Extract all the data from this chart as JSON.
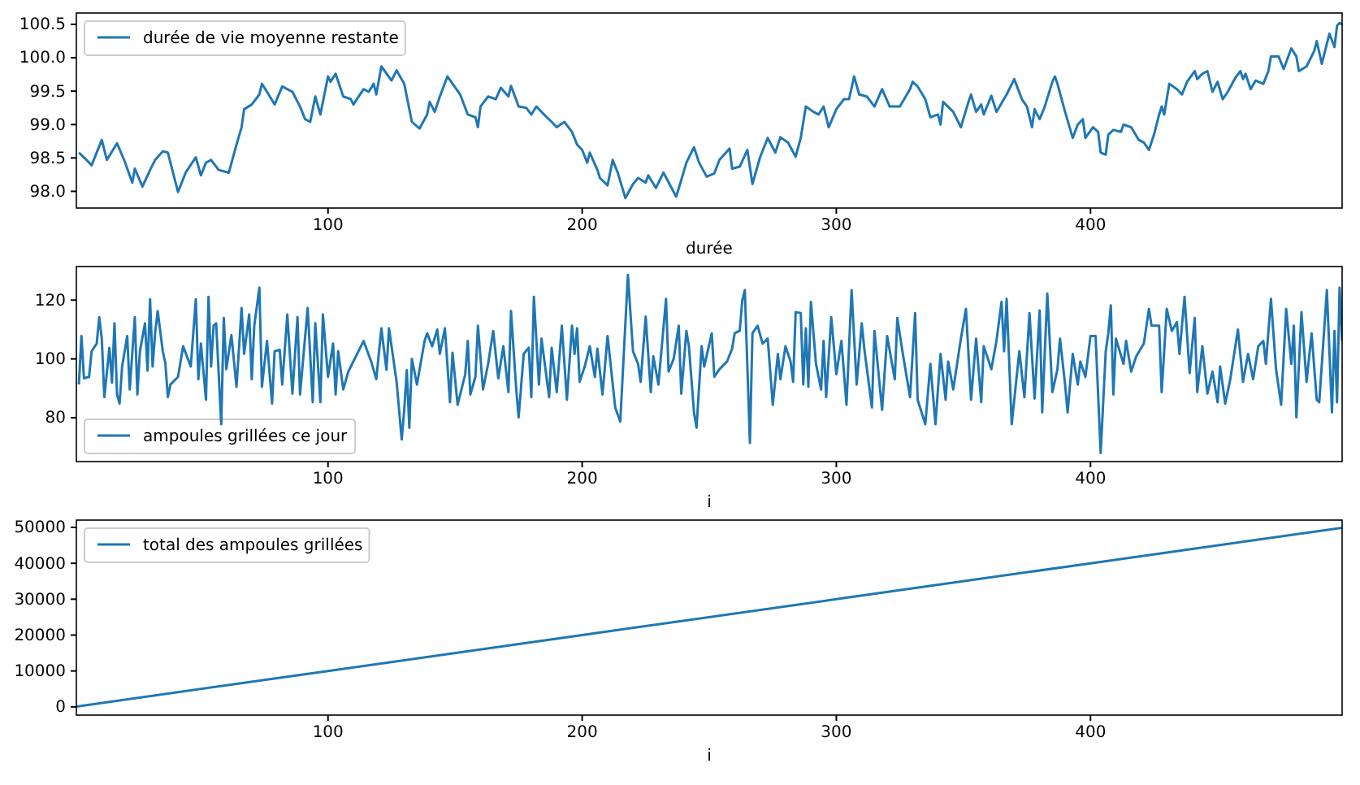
{
  "chart_data": [
    {
      "type": "line",
      "xlabel": "durée",
      "legend": "top left",
      "xlim": [
        1,
        499
      ],
      "xticks": [
        100,
        200,
        300,
        400
      ],
      "ylim": [
        97.75,
        100.67
      ],
      "yticks": [
        {
          "value": 98,
          "label": "98.0"
        },
        {
          "value": 98.5,
          "label": "98.5"
        },
        {
          "value": 99,
          "label": "99.0"
        },
        {
          "value": 99.5,
          "label": "99.5"
        },
        {
          "value": 100,
          "label": "100.0"
        },
        {
          "value": 100.5,
          "label": "100.5"
        }
      ],
      "x": [
        2,
        5,
        7,
        11,
        13,
        17,
        20,
        23,
        24,
        27,
        30,
        32,
        35,
        37,
        41,
        44,
        48,
        50,
        52,
        54,
        57,
        61,
        64,
        66,
        67,
        70,
        73,
        74,
        76,
        79,
        82,
        86,
        89,
        91,
        93,
        95,
        97,
        100,
        101,
        103,
        106,
        109,
        110,
        114,
        116,
        118,
        119,
        121,
        125,
        127,
        130,
        133,
        136,
        139,
        140,
        142,
        144,
        147,
        152,
        155,
        158,
        159,
        160,
        163,
        166,
        168,
        171,
        172,
        175,
        178,
        180,
        182,
        185,
        188,
        190,
        193,
        196,
        198,
        200,
        202,
        203,
        206,
        207,
        210,
        212,
        214,
        217,
        220,
        222,
        225,
        226,
        229,
        232,
        237,
        239,
        241,
        244,
        246,
        249,
        252,
        254,
        258,
        259,
        262,
        265,
        267,
        270,
        273,
        276,
        278,
        281,
        284,
        286,
        288,
        291,
        293,
        295,
        297,
        300,
        303,
        305,
        307,
        309,
        312,
        315,
        318,
        321,
        325,
        329,
        330,
        332,
        335,
        337,
        340,
        341,
        342,
        346,
        349,
        352,
        353,
        355,
        357,
        358,
        361,
        363,
        367,
        370,
        373,
        375,
        377,
        378,
        380,
        382,
        385,
        386,
        387,
        390,
        393,
        395,
        397,
        398,
        401,
        403,
        404,
        406,
        407,
        409,
        412,
        413,
        416,
        419,
        421,
        423,
        425,
        427,
        428,
        429,
        431,
        434,
        436,
        438,
        441,
        442,
        444,
        446,
        448,
        450,
        452,
        454,
        457,
        459,
        460,
        461,
        463,
        465,
        468,
        470,
        471,
        474,
        476,
        479,
        481,
        482,
        485,
        488,
        489,
        491,
        493,
        494,
        496,
        497,
        498,
        499
      ],
      "series": [
        {
          "name": "durée de vie moyenne restante",
          "color": "#1f77b4",
          "values": [
            98.58,
            98.47,
            98.39,
            98.77,
            98.47,
            98.72,
            98.45,
            98.13,
            98.34,
            98.07,
            98.32,
            98.47,
            98.6,
            98.58,
            97.99,
            98.28,
            98.51,
            98.24,
            98.43,
            98.47,
            98.32,
            98.28,
            98.7,
            98.96,
            99.23,
            99.3,
            99.45,
            99.61,
            99.49,
            99.3,
            99.57,
            99.49,
            99.27,
            99.08,
            99.04,
            99.42,
            99.15,
            99.72,
            99.64,
            99.76,
            99.42,
            99.38,
            99.3,
            99.53,
            99.49,
            99.61,
            99.45,
            99.87,
            99.66,
            99.81,
            99.61,
            99.04,
            98.94,
            99.15,
            99.34,
            99.19,
            99.42,
            99.72,
            99.45,
            99.15,
            99.11,
            98.96,
            99.27,
            99.42,
            99.38,
            99.55,
            99.42,
            99.58,
            99.27,
            99.25,
            99.15,
            99.27,
            99.15,
            99.04,
            98.96,
            99.04,
            98.89,
            98.7,
            98.62,
            98.43,
            98.58,
            98.32,
            98.2,
            98.09,
            98.47,
            98.28,
            97.9,
            98.11,
            98.2,
            98.13,
            98.24,
            98.05,
            98.28,
            97.92,
            98.17,
            98.43,
            98.66,
            98.43,
            98.22,
            98.27,
            98.47,
            98.64,
            98.34,
            98.37,
            98.62,
            98.11,
            98.51,
            98.8,
            98.58,
            98.81,
            98.73,
            98.52,
            98.8,
            99.27,
            99.19,
            99.15,
            99.27,
            98.96,
            99.23,
            99.38,
            99.38,
            99.72,
            99.45,
            99.42,
            99.27,
            99.53,
            99.27,
            99.27,
            99.53,
            99.64,
            99.57,
            99.38,
            99.11,
            99.15,
            99.0,
            99.34,
            99.19,
            98.96,
            99.34,
            99.45,
            99.19,
            99.3,
            99.15,
            99.43,
            99.19,
            99.45,
            99.68,
            99.38,
            99.27,
            98.96,
            99.23,
            99.08,
            99.27,
            99.64,
            99.72,
            99.61,
            99.19,
            98.8,
            99.0,
            99.08,
            98.8,
            98.96,
            98.89,
            98.58,
            98.55,
            98.85,
            98.92,
            98.89,
            99.0,
            98.96,
            98.77,
            98.73,
            98.62,
            98.85,
            99.15,
            99.27,
            99.15,
            99.61,
            99.53,
            99.45,
            99.64,
            99.8,
            99.68,
            99.76,
            99.8,
            99.49,
            99.64,
            99.38,
            99.49,
            99.7,
            99.8,
            99.68,
            99.76,
            99.53,
            99.66,
            99.61,
            99.8,
            100.02,
            100.02,
            99.83,
            100.14,
            100.02,
            99.8,
            99.87,
            100.1,
            100.25,
            99.91,
            100.21,
            100.36,
            100.16,
            100.48,
            100.52,
            100.5
          ]
        }
      ]
    },
    {
      "type": "line",
      "xlabel": "i",
      "legend": "bottom left",
      "xlim": [
        1,
        499
      ],
      "xticks": [
        100,
        200,
        300,
        400
      ],
      "ylim": [
        65.1,
        131.4
      ],
      "yticks": [
        80,
        100,
        120
      ],
      "x": [
        2,
        3,
        4,
        6,
        7,
        9,
        10,
        11,
        12,
        14,
        15,
        16,
        17,
        18,
        19,
        21,
        22,
        24,
        25,
        26,
        28,
        29,
        30,
        31,
        32,
        33,
        35,
        36,
        37,
        38,
        41,
        43,
        46,
        48,
        49,
        50,
        52,
        53,
        54,
        55,
        56,
        58,
        59,
        60,
        62,
        64,
        66,
        67,
        69,
        70,
        71,
        73,
        74,
        76,
        78,
        79,
        81,
        82,
        84,
        86,
        88,
        89,
        92,
        94,
        95,
        97,
        98,
        100,
        102,
        103,
        104,
        106,
        108,
        111,
        114,
        117,
        119,
        121,
        123,
        124,
        127,
        129,
        130,
        131,
        132,
        133,
        135,
        138,
        139,
        141,
        143,
        144,
        146,
        148,
        149,
        151,
        154,
        155,
        156,
        158,
        159,
        161,
        163,
        165,
        167,
        169,
        171,
        172,
        174,
        175,
        177,
        179,
        180,
        181,
        183,
        184,
        187,
        188,
        190,
        192,
        194,
        196,
        197,
        198,
        199,
        201,
        203,
        205,
        206,
        208,
        210,
        213,
        215,
        218,
        220,
        222,
        223,
        225,
        227,
        228,
        230,
        233,
        234,
        236,
        238,
        239,
        241,
        242,
        244,
        245,
        247,
        248,
        251,
        252,
        254,
        257,
        259,
        260,
        262,
        263,
        264,
        266,
        267,
        269,
        271,
        273,
        275,
        277,
        278,
        280,
        282,
        283,
        284,
        286,
        287,
        288,
        289,
        290,
        292,
        294,
        295,
        296,
        298,
        300,
        302,
        304,
        306,
        308,
        310,
        311,
        314,
        315,
        318,
        320,
        323,
        324,
        326,
        329,
        331,
        332,
        335,
        337,
        339,
        341,
        343,
        344,
        346,
        349,
        351,
        353,
        355,
        357,
        358,
        361,
        363,
        365,
        366,
        367,
        369,
        372,
        374,
        376,
        377,
        378,
        380,
        381,
        383,
        385,
        387,
        388,
        390,
        391,
        393,
        395,
        396,
        398,
        400,
        402,
        404,
        406,
        407,
        408,
        409,
        410,
        413,
        414,
        416,
        418,
        421,
        423,
        424,
        427,
        428,
        430,
        432,
        434,
        435,
        437,
        439,
        441,
        442,
        444,
        446,
        448,
        450,
        451,
        453,
        455,
        458,
        460,
        462,
        464,
        466,
        468,
        469,
        471,
        473,
        475,
        477,
        479,
        480,
        481,
        483,
        485,
        487,
        489,
        490,
        493,
        495,
        496,
        497,
        498,
        499
      ],
      "series": [
        {
          "name": "ampoules grillées ce jour",
          "color": "#1f77b4",
          "values": [
            91.3,
            107.8,
            93.4,
            93.9,
            102.6,
            105.2,
            114.2,
            106.9,
            87.0,
            103.8,
            91.9,
            112.1,
            87.9,
            84.8,
            97.4,
            107.8,
            89.6,
            114.2,
            87.9,
            102.6,
            112.1,
            96.0,
            120.3,
            97.4,
            109.0,
            116.3,
            102.6,
            98.6,
            87.0,
            91.3,
            93.9,
            104.3,
            97.4,
            120.3,
            93.1,
            105.2,
            86.1,
            121.1,
            97.4,
            111.3,
            112.1,
            77.8,
            113.9,
            96.5,
            108.1,
            90.5,
            117.3,
            101.7,
            115.1,
            93.1,
            111.3,
            124.2,
            90.5,
            106.1,
            84.8,
            102.6,
            103.1,
            91.3,
            115.1,
            88.2,
            114.2,
            87.9,
            117.3,
            85.3,
            112.1,
            85.3,
            115.1,
            93.9,
            105.2,
            87.9,
            102.6,
            89.6,
            95.7,
            100.9,
            106.1,
            99.1,
            93.1,
            110.4,
            96.3,
            110.4,
            92.2,
            72.6,
            82.7,
            96.2,
            76.6,
            100.0,
            91.3,
            106.1,
            108.7,
            104.3,
            110.0,
            101.7,
            110.4,
            85.3,
            102.1,
            84.4,
            94.8,
            106.1,
            87.9,
            93.9,
            111.3,
            89.6,
            98.3,
            109.5,
            93.4,
            104.3,
            88.7,
            116.3,
            90.5,
            80.1,
            101.7,
            103.8,
            87.0,
            121.1,
            91.3,
            106.9,
            87.0,
            103.8,
            88.7,
            111.3,
            86.1,
            111.3,
            101.7,
            110.4,
            92.2,
            97.4,
            104.3,
            93.9,
            103.5,
            87.9,
            107.8,
            83.5,
            78.7,
            128.6,
            102.6,
            98.3,
            92.2,
            114.4,
            88.7,
            100.9,
            91.3,
            120.4,
            95.7,
            100.0,
            111.3,
            88.2,
            109.5,
            104.3,
            81.8,
            76.6,
            104.3,
            97.4,
            108.7,
            93.9,
            96.5,
            99.1,
            103.5,
            108.7,
            109.6,
            119.9,
            123.4,
            71.4,
            108.7,
            111.3,
            105.2,
            106.9,
            84.4,
            101.7,
            93.1,
            104.3,
            99.1,
            92.2,
            115.9,
            115.6,
            91.3,
            110.4,
            90.5,
            119.4,
            98.3,
            89.6,
            106.1,
            87.0,
            114.2,
            94.8,
            106.1,
            84.4,
            123.4,
            91.3,
            112.1,
            103.5,
            83.5,
            109.5,
            82.7,
            107.8,
            93.1,
            113.9,
            102.6,
            87.0,
            115.6,
            86.1,
            77.8,
            98.3,
            77.8,
            101.7,
            86.1,
            99.1,
            89.6,
            106.9,
            117.0,
            86.1,
            106.9,
            85.3,
            104.3,
            96.5,
            106.1,
            119.4,
            102.6,
            120.4,
            77.8,
            102.6,
            87.0,
            115.6,
            100.9,
            86.5,
            116.5,
            81.8,
            122.2,
            88.7,
            96.5,
            106.9,
            91.3,
            81.8,
            101.7,
            91.3,
            99.1,
            93.9,
            107.8,
            107.8,
            68.0,
            102.6,
            108.7,
            118.2,
            87.9,
            106.9,
            98.3,
            106.1,
            95.7,
            100.9,
            105.2,
            117.0,
            111.3,
            111.3,
            88.7,
            117.0,
            109.5,
            112.5,
            101.7,
            121.1,
            95.2,
            113.9,
            88.7,
            104.3,
            88.2,
            95.7,
            85.3,
            97.4,
            84.8,
            93.1,
            110.0,
            92.2,
            101.7,
            93.1,
            104.3,
            106.1,
            98.3,
            120.4,
            96.5,
            84.4,
            117.0,
            98.3,
            111.3,
            80.1,
            115.9,
            92.2,
            108.7,
            86.1,
            85.3,
            123.4,
            81.8,
            109.5,
            85.3,
            124.2,
            106.1
          ]
        }
      ]
    },
    {
      "type": "line",
      "xlabel": "i",
      "legend": "top left",
      "xlim": [
        1,
        499
      ],
      "xticks": [
        100,
        200,
        300,
        400
      ],
      "ylim": [
        -2300,
        52040
      ],
      "yticks": [
        0,
        10000,
        20000,
        30000,
        40000,
        50000
      ],
      "x": [
        1,
        100,
        200,
        300,
        400,
        499
      ],
      "series": [
        {
          "name": "total des ampoules grillées",
          "color": "#1f77b4",
          "values": [
            100,
            10000,
            20000,
            30000,
            40000,
            49900
          ]
        }
      ]
    }
  ]
}
